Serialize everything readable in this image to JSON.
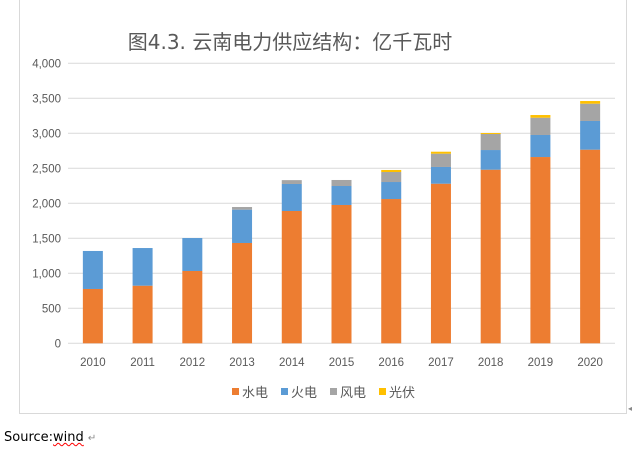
{
  "chart_data": {
    "type": "bar",
    "stacked": true,
    "title": "图4.3. 云南电力供应结构：亿千瓦时",
    "xlabel": "",
    "ylabel": "",
    "ylim": [
      0,
      4000
    ],
    "yticks": [
      "0",
      "500",
      "1,000",
      "1,500",
      "2,000",
      "2,500",
      "3,000",
      "3,500",
      "4,000"
    ],
    "grid": true,
    "legend": "bottom",
    "categories": [
      "2010",
      "2011",
      "2012",
      "2013",
      "2014",
      "2015",
      "2016",
      "2017",
      "2018",
      "2019",
      "2020"
    ],
    "series": [
      {
        "name": "水电",
        "color": "#ED7D31",
        "values": [
          776,
          823,
          1033,
          1433,
          1890,
          1976,
          2061,
          2280,
          2480,
          2661,
          2766
        ]
      },
      {
        "name": "火电",
        "color": "#5B9BD5",
        "values": [
          543,
          538,
          471,
          476,
          386,
          271,
          243,
          239,
          281,
          315,
          410
        ]
      },
      {
        "name": "风电",
        "color": "#A5A5A5",
        "values": [
          0,
          0,
          0,
          38,
          55,
          86,
          143,
          190,
          229,
          247,
          247
        ]
      },
      {
        "name": "光伏",
        "color": "#FFC000",
        "values": [
          0,
          0,
          0,
          0,
          0,
          0,
          29,
          28,
          14,
          38,
          38
        ]
      }
    ]
  },
  "source": {
    "label": "Source:",
    "value": "wind",
    "mark": "↵"
  }
}
